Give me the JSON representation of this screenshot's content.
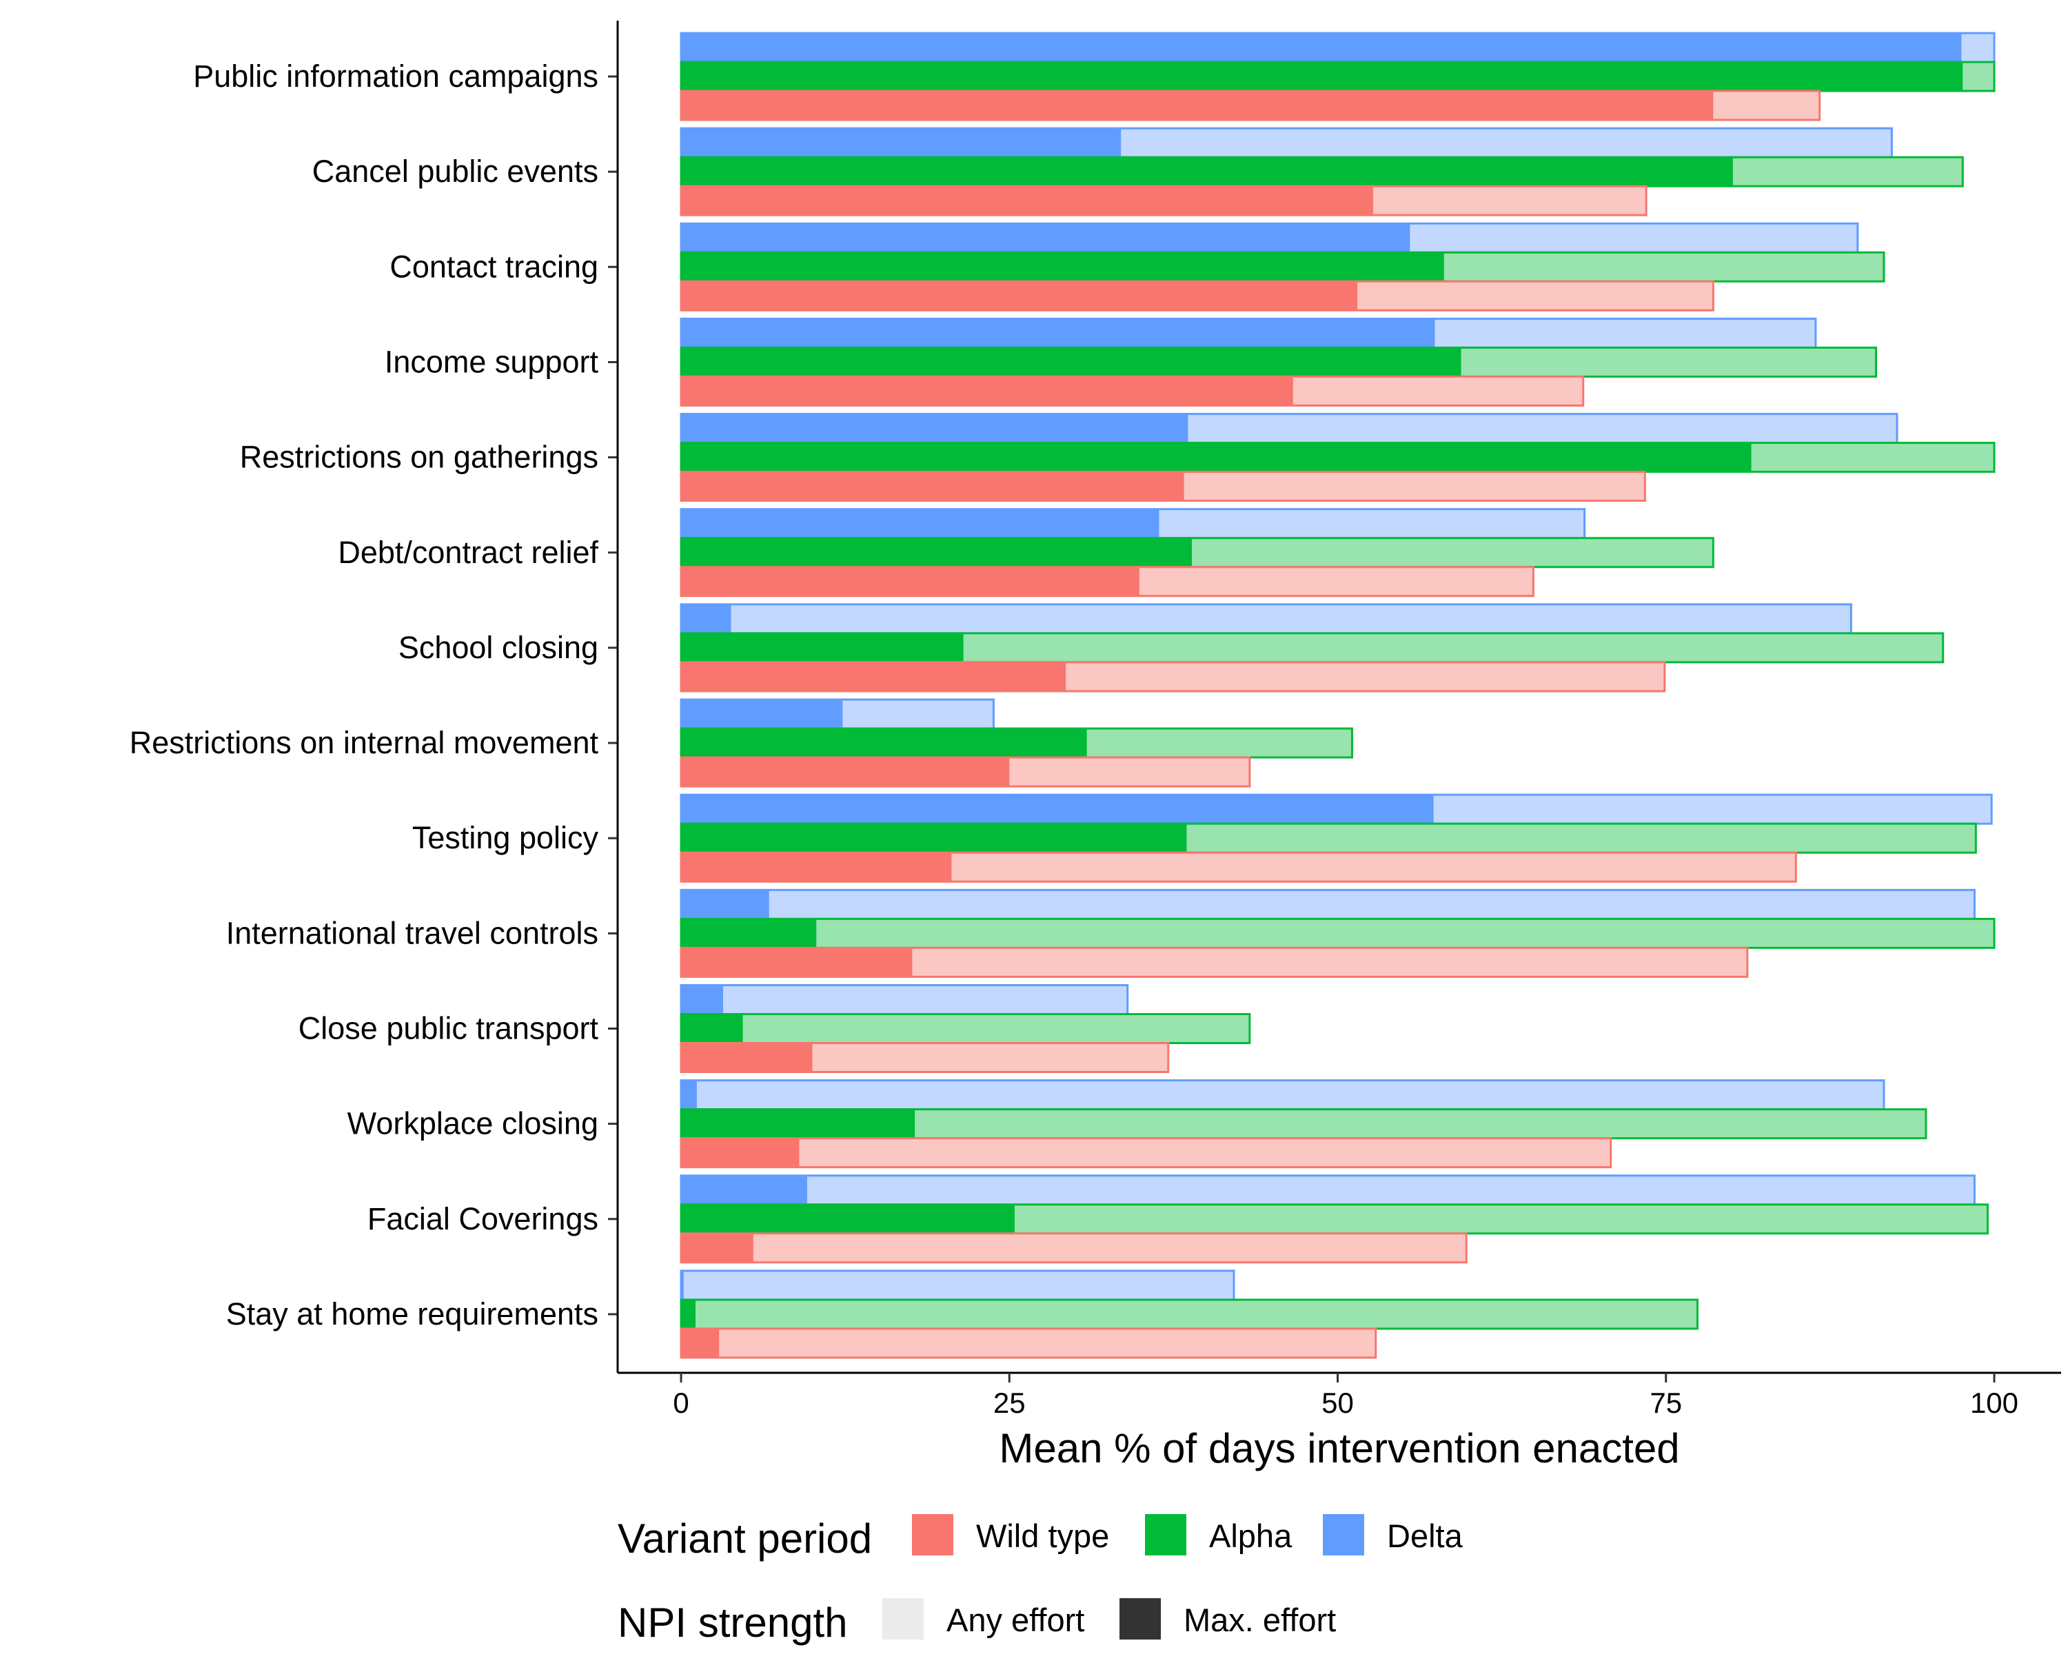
{
  "chart_data": {
    "type": "bar",
    "orientation": "horizontal",
    "xlabel": "Mean % of days intervention enacted",
    "xlim": [
      0,
      100
    ],
    "xticks": [
      0,
      25,
      50,
      75,
      100
    ],
    "categories": [
      "Public information campaigns",
      "Cancel public events",
      "Contact tracing",
      "Income support",
      "Restrictions on gatherings",
      "Debt/contract relief",
      "School closing",
      "Restrictions on internal movement",
      "Testing policy",
      "International travel controls",
      "Close public transport",
      "Workplace closing",
      "Facial Coverings",
      "Stay at home requirements"
    ],
    "series": [
      {
        "name": "Wild type",
        "color": "#F8766D",
        "light_color": "#FBC7C3",
        "any_effort": [
          86.7,
          73.5,
          78.6,
          68.7,
          73.4,
          64.9,
          74.9,
          43.3,
          84.9,
          81.2,
          37.1,
          70.8,
          59.8,
          52.9
        ],
        "max_effort": [
          78.6,
          52.7,
          51.5,
          46.6,
          38.3,
          34.9,
          29.3,
          25.0,
          20.6,
          17.6,
          10.0,
          9.0,
          5.5,
          2.9
        ]
      },
      {
        "name": "Alpha",
        "color": "#00BA38",
        "light_color": "#99E3AF",
        "any_effort": [
          100.0,
          97.6,
          91.6,
          91.0,
          100.0,
          78.6,
          96.1,
          51.1,
          98.6,
          100.0,
          43.3,
          94.8,
          99.5,
          77.4
        ],
        "max_effort": [
          97.6,
          80.1,
          58.1,
          59.4,
          81.5,
          38.9,
          21.5,
          30.9,
          38.5,
          10.3,
          4.7,
          17.8,
          25.4,
          1.1
        ]
      },
      {
        "name": "Delta",
        "color": "#619CFF",
        "light_color": "#C2D8FF",
        "any_effort": [
          100.0,
          92.2,
          89.6,
          86.4,
          92.6,
          68.8,
          89.1,
          23.8,
          99.8,
          98.5,
          34.0,
          91.6,
          98.5,
          42.1
        ],
        "max_effort": [
          97.5,
          33.5,
          55.5,
          57.4,
          38.6,
          36.4,
          3.8,
          12.3,
          57.3,
          6.7,
          3.2,
          1.2,
          9.6,
          0.2
        ]
      }
    ],
    "legend": {
      "position": "bottom",
      "variant_title": "Variant period",
      "variant_labels": [
        "Wild type",
        "Alpha",
        "Delta"
      ],
      "strength_title": "NPI strength",
      "strength_labels": [
        "Any effort",
        "Max. effort"
      ],
      "strength_colors": [
        "#EBEBEB",
        "#333333"
      ]
    },
    "grid": false
  }
}
